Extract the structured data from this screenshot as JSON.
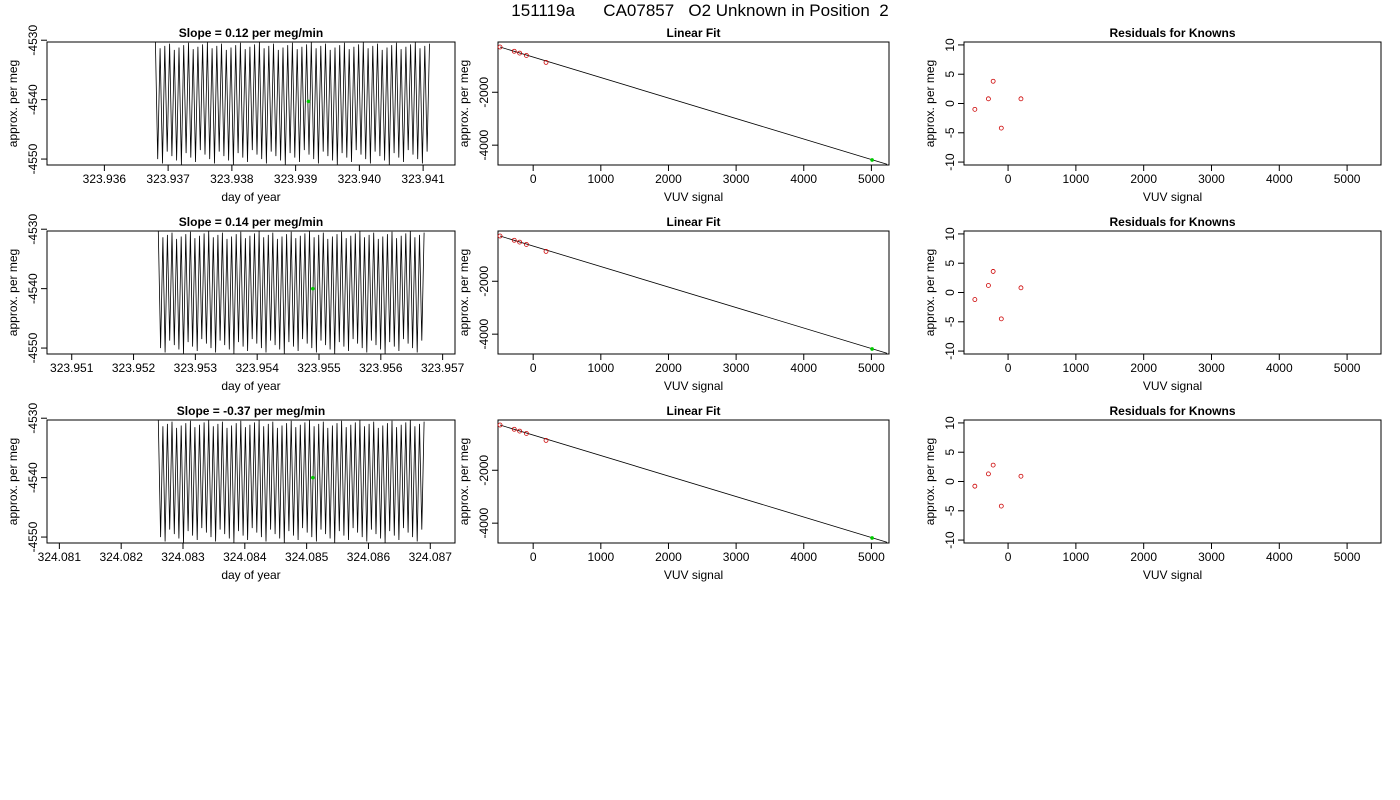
{
  "title": "151119a      CA07857   O2 Unknown in Position  2",
  "colors": {
    "trace": "#000000",
    "known_points": "#cc0000",
    "unknown_point": "#00cc00",
    "frame": "#000000",
    "background": "#ffffff"
  },
  "chart_data": [
    {
      "id": "r1-trace",
      "type": "line",
      "title": "Slope =  0.12  per meg/min",
      "xlabel": "day of year",
      "ylabel": "approx. per meg",
      "xlim": [
        323.9351,
        323.9415
      ],
      "ylim": [
        -4551,
        -4530.3
      ],
      "xticks": [
        323.936,
        323.937,
        323.938,
        323.939,
        323.94,
        323.941
      ],
      "xtick_labels": [
        "323.936",
        "323.937",
        "323.938",
        "323.939",
        "323.940",
        "323.941"
      ],
      "yticks": [
        -4530,
        -4540,
        -4550
      ],
      "ytick_labels": [
        "-4530",
        "-4540",
        "-4550"
      ],
      "trace": {
        "x_start": 323.9368,
        "x_end": 323.9411,
        "cycles": 58,
        "high": -4530.3,
        "low": -4551,
        "mean": -4540
      },
      "highlight": {
        "x": 323.9392,
        "y": -4540.3
      }
    },
    {
      "id": "r1-fit",
      "type": "scatter",
      "title": "Linear Fit",
      "xlabel": "VUV signal",
      "ylabel": "approx. per meg",
      "xlim": [
        -520,
        5260
      ],
      "ylim": [
        -4750,
        -100
      ],
      "xticks": [
        0,
        1000,
        2000,
        3000,
        4000,
        5000
      ],
      "xtick_labels": [
        "0",
        "1000",
        "2000",
        "3000",
        "4000",
        "5000"
      ],
      "yticks": [
        -2000,
        -4000
      ],
      "ytick_labels": [
        "-2000",
        "-4000"
      ],
      "knowns": {
        "x": [
          -490,
          -280,
          -200,
          -100,
          190
        ],
        "y": [
          -290,
          -450,
          -520,
          -610,
          -870
        ]
      },
      "unknown": {
        "x": 5010,
        "y": -4560
      },
      "fit_line": {
        "x": [
          -490,
          5230
        ],
        "y": [
          -290,
          -4720
        ]
      }
    },
    {
      "id": "r1-resid",
      "type": "scatter",
      "title": "Residuals for Knowns",
      "xlabel": "VUV signal",
      "ylabel": "approx. per meg",
      "xlim": [
        -650,
        5500
      ],
      "ylim": [
        -10.5,
        10.5
      ],
      "xticks": [
        0,
        1000,
        2000,
        3000,
        4000,
        5000
      ],
      "xtick_labels": [
        "0",
        "1000",
        "2000",
        "3000",
        "4000",
        "5000"
      ],
      "yticks": [
        10,
        5,
        0,
        -5,
        -10
      ],
      "ytick_labels": [
        "10",
        "5",
        "0",
        "-5",
        "-10"
      ],
      "knowns": {
        "x": [
          -490,
          -290,
          -220,
          -100,
          190
        ],
        "y": [
          -1.0,
          0.8,
          3.8,
          -4.2,
          0.8
        ]
      }
    },
    {
      "id": "r2-trace",
      "type": "line",
      "title": "Slope =  0.14  per meg/min",
      "xlabel": "day of year",
      "ylabel": "approx. per meg",
      "xlim": [
        323.9506,
        323.9572
      ],
      "ylim": [
        -4551,
        -4530.3
      ],
      "xticks": [
        323.951,
        323.952,
        323.953,
        323.954,
        323.955,
        323.956,
        323.957
      ],
      "xtick_labels": [
        "323.951",
        "323.952",
        "323.953",
        "323.954",
        "323.955",
        "323.956",
        "323.957"
      ],
      "yticks": [
        -4530,
        -4540,
        -4550
      ],
      "ytick_labels": [
        "-4530",
        "-4540",
        "-4550"
      ],
      "trace": {
        "x_start": 323.9524,
        "x_end": 323.9567,
        "cycles": 58,
        "high": -4530.3,
        "low": -4551,
        "mean": -4540
      },
      "highlight": {
        "x": 323.9549,
        "y": -4540
      }
    },
    {
      "id": "r2-fit",
      "type": "scatter",
      "title": "Linear Fit",
      "xlabel": "VUV signal",
      "ylabel": "approx. per meg",
      "xlim": [
        -520,
        5260
      ],
      "ylim": [
        -4750,
        -100
      ],
      "xticks": [
        0,
        1000,
        2000,
        3000,
        4000,
        5000
      ],
      "xtick_labels": [
        "0",
        "1000",
        "2000",
        "3000",
        "4000",
        "5000"
      ],
      "yticks": [
        -2000,
        -4000
      ],
      "ytick_labels": [
        "-2000",
        "-4000"
      ],
      "knowns": {
        "x": [
          -490,
          -280,
          -200,
          -100,
          190
        ],
        "y": [
          -290,
          -450,
          -520,
          -610,
          -870
        ]
      },
      "unknown": {
        "x": 5010,
        "y": -4560
      },
      "fit_line": {
        "x": [
          -490,
          5230
        ],
        "y": [
          -290,
          -4720
        ]
      }
    },
    {
      "id": "r2-resid",
      "type": "scatter",
      "title": "Residuals for Knowns",
      "xlabel": "VUV signal",
      "ylabel": "approx. per meg",
      "xlim": [
        -650,
        5500
      ],
      "ylim": [
        -10.5,
        10.5
      ],
      "xticks": [
        0,
        1000,
        2000,
        3000,
        4000,
        5000
      ],
      "xtick_labels": [
        "0",
        "1000",
        "2000",
        "3000",
        "4000",
        "5000"
      ],
      "yticks": [
        10,
        5,
        0,
        -5,
        -10
      ],
      "ytick_labels": [
        "10",
        "5",
        "0",
        "-5",
        "-10"
      ],
      "knowns": {
        "x": [
          -490,
          -290,
          -220,
          -100,
          190
        ],
        "y": [
          -1.2,
          1.2,
          3.6,
          -4.5,
          0.8
        ]
      }
    },
    {
      "id": "r3-trace",
      "type": "line",
      "title": "Slope =  -0.37  per meg/min",
      "xlabel": "day of year",
      "ylabel": "approx. per meg",
      "xlim": [
        324.0808,
        324.0874
      ],
      "ylim": [
        -4551,
        -4530.3
      ],
      "xticks": [
        324.081,
        324.082,
        324.083,
        324.084,
        324.085,
        324.086,
        324.087
      ],
      "xtick_labels": [
        "324.081",
        "324.082",
        "324.083",
        "324.084",
        "324.085",
        "324.086",
        "324.087"
      ],
      "yticks": [
        -4530,
        -4540,
        -4550
      ],
      "ytick_labels": [
        "-4530",
        "-4540",
        "-4550"
      ],
      "trace": {
        "x_start": 324.0826,
        "x_end": 324.0869,
        "cycles": 58,
        "high": -4530.3,
        "low": -4551,
        "mean": -4540
      },
      "highlight": {
        "x": 324.0851,
        "y": -4540
      }
    },
    {
      "id": "r3-fit",
      "type": "scatter",
      "title": "Linear Fit",
      "xlabel": "VUV signal",
      "ylabel": "approx. per meg",
      "xlim": [
        -520,
        5260
      ],
      "ylim": [
        -4750,
        -100
      ],
      "xticks": [
        0,
        1000,
        2000,
        3000,
        4000,
        5000
      ],
      "xtick_labels": [
        "0",
        "1000",
        "2000",
        "3000",
        "4000",
        "5000"
      ],
      "yticks": [
        -2000,
        -4000
      ],
      "ytick_labels": [
        "-2000",
        "-4000"
      ],
      "knowns": {
        "x": [
          -490,
          -280,
          -200,
          -100,
          190
        ],
        "y": [
          -290,
          -450,
          -520,
          -610,
          -870
        ]
      },
      "unknown": {
        "x": 5010,
        "y": -4560
      },
      "fit_line": {
        "x": [
          -490,
          5230
        ],
        "y": [
          -290,
          -4720
        ]
      }
    },
    {
      "id": "r3-resid",
      "type": "scatter",
      "title": "Residuals for Knowns",
      "xlabel": "VUV signal",
      "ylabel": "approx. per meg",
      "xlim": [
        -650,
        5500
      ],
      "ylim": [
        -10.5,
        10.5
      ],
      "xticks": [
        0,
        1000,
        2000,
        3000,
        4000,
        5000
      ],
      "xtick_labels": [
        "0",
        "1000",
        "2000",
        "3000",
        "4000",
        "5000"
      ],
      "yticks": [
        10,
        5,
        0,
        -5,
        -10
      ],
      "ytick_labels": [
        "10",
        "5",
        "0",
        "-5",
        "-10"
      ],
      "knowns": {
        "x": [
          -490,
          -290,
          -220,
          -100,
          190
        ],
        "y": [
          -0.8,
          1.3,
          2.8,
          -4.2,
          0.9
        ]
      }
    }
  ]
}
